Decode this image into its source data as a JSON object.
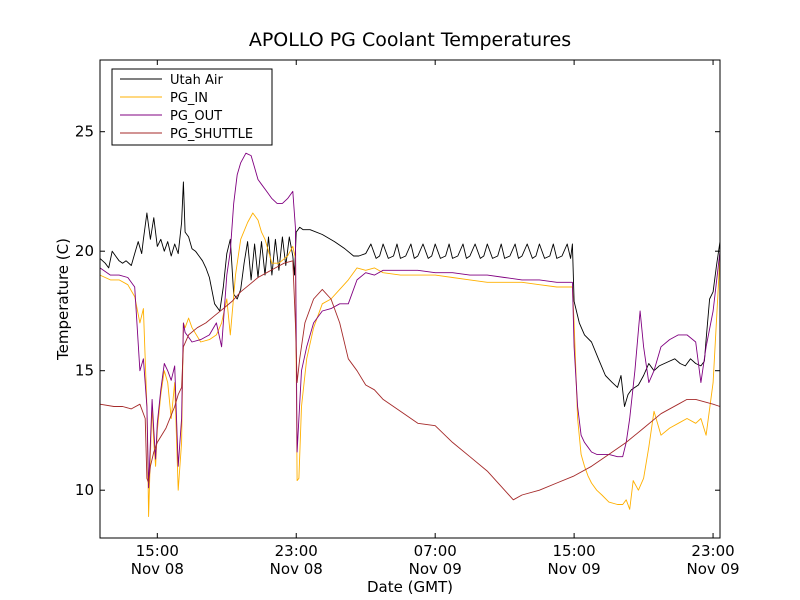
{
  "chart_data": {
    "type": "line",
    "title": "APOLLO PG Coolant Temperatures",
    "xlabel": "Date (GMT)",
    "ylabel": "Temperature (C)",
    "x_unit": "hours since Nov 08 00:00 GMT",
    "xlim": [
      11.7,
      47.4
    ],
    "ylim": [
      8,
      28
    ],
    "grid": false,
    "legend_position": "top-left",
    "x_ticks": [
      {
        "x": 15,
        "line1": "15:00",
        "line2": "Nov 08"
      },
      {
        "x": 23,
        "line1": "23:00",
        "line2": "Nov 08"
      },
      {
        "x": 31,
        "line1": "07:00",
        "line2": "Nov 09"
      },
      {
        "x": 39,
        "line1": "15:00",
        "line2": "Nov 09"
      },
      {
        "x": 47,
        "line1": "23:00",
        "line2": "Nov 09"
      }
    ],
    "y_ticks": [
      10,
      15,
      20,
      25
    ],
    "series": [
      {
        "name": "Utah Air",
        "color": "#000000",
        "x": [
          11.7,
          12.0,
          12.2,
          12.4,
          12.6,
          12.8,
          13.0,
          13.2,
          13.5,
          13.7,
          13.9,
          14.1,
          14.2,
          14.4,
          14.6,
          14.8,
          15.0,
          15.2,
          15.4,
          15.6,
          15.8,
          16.0,
          16.2,
          16.4,
          16.5,
          16.6,
          16.8,
          17.0,
          17.2,
          17.4,
          17.6,
          17.8,
          18.0,
          18.3,
          18.6,
          18.8,
          19.0,
          19.2,
          19.4,
          19.6,
          19.8,
          20.0,
          20.2,
          20.4,
          20.6,
          20.8,
          21.0,
          21.2,
          21.4,
          21.6,
          21.8,
          22.0,
          22.2,
          22.4,
          22.6,
          22.8,
          22.9,
          23.0,
          23.2,
          23.4,
          23.8,
          24.5,
          25.2,
          25.8,
          26.3,
          26.6,
          27.0,
          27.3,
          27.6,
          27.8,
          28.0,
          28.3,
          28.6,
          28.8,
          29.0,
          29.3,
          29.6,
          29.8,
          30.0,
          30.3,
          30.6,
          30.8,
          31.0,
          31.3,
          31.6,
          31.8,
          32.0,
          32.3,
          32.6,
          32.8,
          33.0,
          33.3,
          33.6,
          33.8,
          34.0,
          34.3,
          34.6,
          34.8,
          35.0,
          35.3,
          35.6,
          35.8,
          36.0,
          36.3,
          36.6,
          36.8,
          37.0,
          37.3,
          37.6,
          37.8,
          38.0,
          38.3,
          38.6,
          38.8,
          38.9,
          39.0,
          39.3,
          39.6,
          40.0,
          40.4,
          40.8,
          41.2,
          41.5,
          41.7,
          41.9,
          42.1,
          42.3,
          42.5,
          42.7,
          43.0,
          43.3,
          43.6,
          43.9,
          44.2,
          44.5,
          44.8,
          45.1,
          45.4,
          45.7,
          46.0,
          46.3,
          46.5,
          46.6,
          46.8,
          47.0,
          47.2,
          47.4
        ],
        "y": [
          19.7,
          19.5,
          19.3,
          20.0,
          19.8,
          19.6,
          19.5,
          19.6,
          19.4,
          19.9,
          20.4,
          19.9,
          20.5,
          21.6,
          20.5,
          21.4,
          20.2,
          20.5,
          20.0,
          20.4,
          19.8,
          20.3,
          19.9,
          21.2,
          22.9,
          20.8,
          20.6,
          20.1,
          20.0,
          19.8,
          19.6,
          19.3,
          18.9,
          17.8,
          17.5,
          18.5,
          19.9,
          20.5,
          18.2,
          18.0,
          18.4,
          19.5,
          20.4,
          18.8,
          20.3,
          18.9,
          20.4,
          19.0,
          20.6,
          19.0,
          20.5,
          19.2,
          20.6,
          19.4,
          20.6,
          19.8,
          19.0,
          20.8,
          21.0,
          20.9,
          20.9,
          20.7,
          20.4,
          20.1,
          19.8,
          19.8,
          19.9,
          20.3,
          19.7,
          19.8,
          20.3,
          19.7,
          19.8,
          20.3,
          19.7,
          19.8,
          20.3,
          19.7,
          19.8,
          20.3,
          19.7,
          19.8,
          20.3,
          19.7,
          19.8,
          20.3,
          19.7,
          19.8,
          20.3,
          19.7,
          19.8,
          20.3,
          19.7,
          19.8,
          20.3,
          19.7,
          19.8,
          20.3,
          19.7,
          19.8,
          20.3,
          19.7,
          19.8,
          20.3,
          19.7,
          19.8,
          20.3,
          19.7,
          19.8,
          20.3,
          19.7,
          19.8,
          20.3,
          19.7,
          20.3,
          17.9,
          17.0,
          16.5,
          16.2,
          15.5,
          14.8,
          14.5,
          14.3,
          14.8,
          13.5,
          14.0,
          14.2,
          14.3,
          14.4,
          14.8,
          15.3,
          15.0,
          15.2,
          15.3,
          15.4,
          15.5,
          15.3,
          15.2,
          15.5,
          15.3,
          15.2,
          15.4,
          16.3,
          18.0,
          18.3,
          19.4,
          20.4
        ]
      },
      {
        "name": "PG_IN",
        "color": "#ffb000",
        "x": [
          11.7,
          12.3,
          12.8,
          13.3,
          13.7,
          14.0,
          14.2,
          14.4,
          14.5,
          14.6,
          14.7,
          14.8,
          14.9,
          15.0,
          15.2,
          15.4,
          15.6,
          15.8,
          16.0,
          16.2,
          16.4,
          16.5,
          16.6,
          16.8,
          17.0,
          17.5,
          18.0,
          18.4,
          18.7,
          19.0,
          19.2,
          19.5,
          19.8,
          20.2,
          20.5,
          20.8,
          21.0,
          21.2,
          21.4,
          21.6,
          22.0,
          22.5,
          22.8,
          22.95,
          23.05,
          23.15,
          23.3,
          23.6,
          24.0,
          24.5,
          25.0,
          25.5,
          26.0,
          26.5,
          27.0,
          27.5,
          28.0,
          29.0,
          30.0,
          31.0,
          32.0,
          33.0,
          34.0,
          35.0,
          36.0,
          37.0,
          38.0,
          38.9,
          39.0,
          39.2,
          39.4,
          39.6,
          39.8,
          40.0,
          40.3,
          40.6,
          41.0,
          41.5,
          41.8,
          42.0,
          42.2,
          42.4,
          42.7,
          43.0,
          43.3,
          43.6,
          44.0,
          44.5,
          45.0,
          45.5,
          46.0,
          46.3,
          46.6,
          47.0,
          47.4
        ],
        "y": [
          19.0,
          18.8,
          18.8,
          18.6,
          18.1,
          17.0,
          17.6,
          13.5,
          8.9,
          11.5,
          13.5,
          12.0,
          11.0,
          12.5,
          14.0,
          15.0,
          14.5,
          13.0,
          14.5,
          10.0,
          12.0,
          17.0,
          16.8,
          17.2,
          16.8,
          16.2,
          16.3,
          16.5,
          17.0,
          18.0,
          16.5,
          19.0,
          20.5,
          21.2,
          21.6,
          21.3,
          20.8,
          20.5,
          20.0,
          19.5,
          19.5,
          19.8,
          20.2,
          19.7,
          10.4,
          10.5,
          13.5,
          15.5,
          16.8,
          17.8,
          18.0,
          18.4,
          18.8,
          19.3,
          19.2,
          19.3,
          19.1,
          19.0,
          19.0,
          19.0,
          18.9,
          18.8,
          18.7,
          18.7,
          18.7,
          18.6,
          18.5,
          18.5,
          17.0,
          13.0,
          11.5,
          11.0,
          10.6,
          10.3,
          10.0,
          9.8,
          9.5,
          9.4,
          9.4,
          9.6,
          9.2,
          10.4,
          10.0,
          10.5,
          11.8,
          13.3,
          12.3,
          12.6,
          12.8,
          13.0,
          12.8,
          13.0,
          12.3,
          14.5,
          19.8
        ]
      },
      {
        "name": "PG_OUT",
        "color": "#800080",
        "x": [
          11.7,
          12.3,
          12.8,
          13.3,
          13.7,
          14.0,
          14.2,
          14.4,
          14.5,
          14.6,
          14.7,
          14.8,
          14.9,
          15.0,
          15.2,
          15.4,
          15.6,
          15.8,
          16.0,
          16.2,
          16.4,
          16.5,
          16.6,
          16.8,
          17.0,
          17.5,
          18.0,
          18.4,
          18.7,
          19.0,
          19.2,
          19.4,
          19.6,
          19.8,
          20.1,
          20.4,
          20.6,
          20.8,
          21.0,
          21.3,
          21.6,
          21.9,
          22.2,
          22.5,
          22.8,
          22.95,
          23.05,
          23.15,
          23.3,
          23.6,
          24.0,
          24.5,
          25.0,
          25.5,
          26.0,
          26.5,
          27.0,
          27.5,
          28.0,
          29.0,
          30.0,
          31.0,
          32.0,
          33.0,
          34.0,
          35.0,
          36.0,
          37.0,
          38.0,
          38.9,
          39.0,
          39.2,
          39.4,
          39.6,
          39.8,
          40.0,
          40.3,
          40.6,
          41.0,
          41.5,
          41.8,
          42.0,
          42.2,
          42.5,
          42.8,
          43.0,
          43.3,
          43.6,
          44.0,
          44.5,
          45.0,
          45.5,
          46.0,
          46.3,
          46.6,
          47.0,
          47.4
        ],
        "y": [
          19.3,
          19.0,
          19.0,
          18.9,
          18.5,
          15.0,
          15.5,
          13.5,
          10.1,
          12.0,
          13.8,
          12.5,
          11.3,
          12.8,
          14.2,
          15.3,
          15.0,
          14.6,
          15.2,
          11.0,
          13.0,
          17.0,
          16.6,
          16.4,
          16.2,
          16.3,
          16.5,
          17.0,
          16.0,
          19.0,
          20.0,
          22.0,
          23.2,
          23.7,
          24.1,
          24.0,
          23.5,
          23.0,
          22.8,
          22.5,
          22.2,
          22.0,
          22.0,
          22.2,
          22.5,
          21.0,
          11.6,
          13.0,
          15.0,
          16.0,
          17.0,
          17.5,
          17.6,
          17.8,
          17.8,
          18.8,
          19.1,
          19.0,
          19.2,
          19.2,
          19.2,
          19.1,
          19.1,
          19.0,
          19.0,
          18.9,
          18.8,
          18.8,
          18.7,
          18.7,
          16.0,
          13.5,
          12.3,
          12.0,
          11.8,
          11.6,
          11.5,
          11.5,
          11.5,
          11.4,
          11.4,
          12.0,
          13.0,
          15.0,
          17.5,
          16.0,
          14.5,
          15.0,
          16.0,
          16.3,
          16.5,
          16.5,
          16.2,
          14.5,
          16.0,
          17.5,
          20.0
        ]
      },
      {
        "name": "PG_SHUTTLE",
        "color": "#a52a2a",
        "x": [
          11.7,
          12.5,
          13.0,
          13.5,
          14.0,
          14.3,
          14.4,
          14.5,
          14.6,
          14.8,
          15.0,
          15.5,
          16.0,
          16.2,
          16.4,
          16.5,
          16.8,
          17.3,
          17.8,
          18.3,
          18.8,
          19.3,
          19.8,
          20.3,
          20.8,
          21.3,
          21.8,
          22.3,
          22.8,
          22.95,
          23.05,
          23.2,
          23.5,
          24.0,
          24.5,
          25.0,
          25.5,
          26.0,
          26.5,
          27.0,
          27.5,
          28.0,
          29.0,
          30.0,
          31.0,
          32.0,
          33.0,
          34.0,
          35.0,
          35.5,
          36.0,
          37.0,
          38.0,
          39.0,
          40.0,
          41.0,
          42.0,
          43.0,
          44.0,
          45.0,
          45.5,
          46.0,
          46.5,
          47.0,
          47.4
        ],
        "y": [
          13.6,
          13.5,
          13.5,
          13.4,
          13.6,
          13.0,
          10.5,
          10.3,
          11.0,
          11.6,
          12.0,
          12.6,
          13.5,
          14.0,
          14.3,
          16.0,
          16.5,
          16.8,
          17.0,
          17.3,
          17.6,
          17.9,
          18.3,
          18.6,
          18.9,
          19.1,
          19.3,
          19.5,
          19.6,
          17.0,
          14.5,
          15.5,
          17.0,
          18.0,
          18.4,
          18.0,
          17.0,
          15.5,
          15.0,
          14.4,
          14.2,
          13.8,
          13.3,
          12.8,
          12.7,
          12.0,
          11.4,
          10.8,
          10.0,
          9.6,
          9.8,
          10.0,
          10.3,
          10.6,
          11.0,
          11.5,
          12.0,
          12.6,
          13.2,
          13.6,
          13.8,
          13.8,
          13.7,
          13.6,
          13.5
        ]
      }
    ]
  }
}
